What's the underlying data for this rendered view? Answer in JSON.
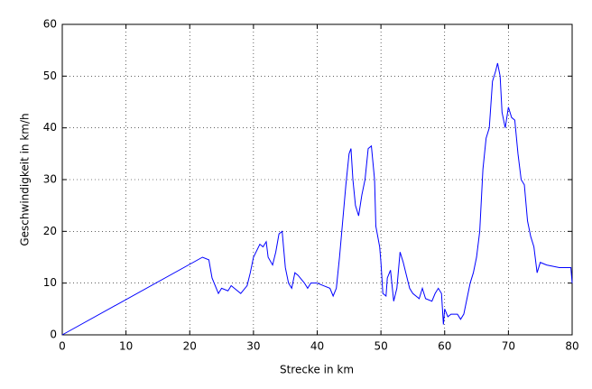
{
  "chart_data": {
    "type": "line",
    "x_label": "Strecke in km",
    "y_label": "Geschwindigkeit in km/h",
    "xlim": [
      0,
      80
    ],
    "ylim": [
      0,
      60
    ],
    "xticks": [
      0,
      10,
      20,
      30,
      40,
      50,
      60,
      70,
      80
    ],
    "yticks": [
      0,
      10,
      20,
      30,
      40,
      50,
      60
    ],
    "grid": true,
    "series": [
      {
        "color": "#0000ff",
        "x": [
          0,
          22,
          23,
          23.5,
          24.5,
          25,
          26,
          26.5,
          27,
          28,
          29,
          29.5,
          30,
          31,
          31.5,
          32,
          32.3,
          33,
          33.5,
          34,
          34.5,
          35,
          35.5,
          36,
          36.5,
          37,
          38,
          38.5,
          39,
          40,
          41,
          42,
          42.5,
          43,
          43.5,
          44,
          44.5,
          45,
          45.3,
          45.6,
          46,
          46.5,
          47,
          47.5,
          48,
          48.5,
          49,
          49.2,
          49.8,
          50,
          50.3,
          50.8,
          51,
          51.5,
          52,
          52.5,
          53,
          53.5,
          54,
          54.5,
          55,
          56,
          56.5,
          57,
          58,
          58.5,
          59,
          59.5,
          59.8,
          60,
          60.5,
          61,
          62,
          62.5,
          63,
          63.5,
          64,
          64.5,
          65,
          65.5,
          66,
          66.5,
          67,
          67.5,
          68,
          68.3,
          68.7,
          69,
          69.5,
          70,
          70.5,
          71,
          71.5,
          72,
          72.5,
          73,
          73.5,
          74,
          74.5,
          75,
          76,
          78,
          79.8,
          80
        ],
        "values": [
          0,
          15,
          14.5,
          11,
          8,
          9,
          8.5,
          9.5,
          9,
          8,
          9.5,
          12,
          15,
          17.5,
          17,
          18,
          15,
          13.5,
          16,
          19.5,
          20,
          13,
          10,
          9,
          12,
          11.5,
          10,
          9,
          10,
          10,
          9.5,
          9,
          7.5,
          9,
          15,
          22,
          29,
          35,
          36,
          30,
          25,
          23,
          27,
          30,
          36,
          36.5,
          30,
          21,
          17,
          14,
          8,
          7.5,
          11,
          12.5,
          6.5,
          9,
          16,
          14,
          11.5,
          9,
          8,
          7,
          9,
          7,
          6.5,
          8,
          9,
          8,
          2,
          5,
          3.5,
          4,
          4,
          3,
          4,
          7,
          10,
          12,
          15,
          20,
          32,
          38,
          40,
          49,
          51,
          52.5,
          50,
          43,
          40,
          44,
          42,
          41.5,
          35,
          30,
          29,
          22,
          19,
          17,
          12,
          14,
          13.5,
          13,
          13,
          10
        ]
      }
    ]
  }
}
